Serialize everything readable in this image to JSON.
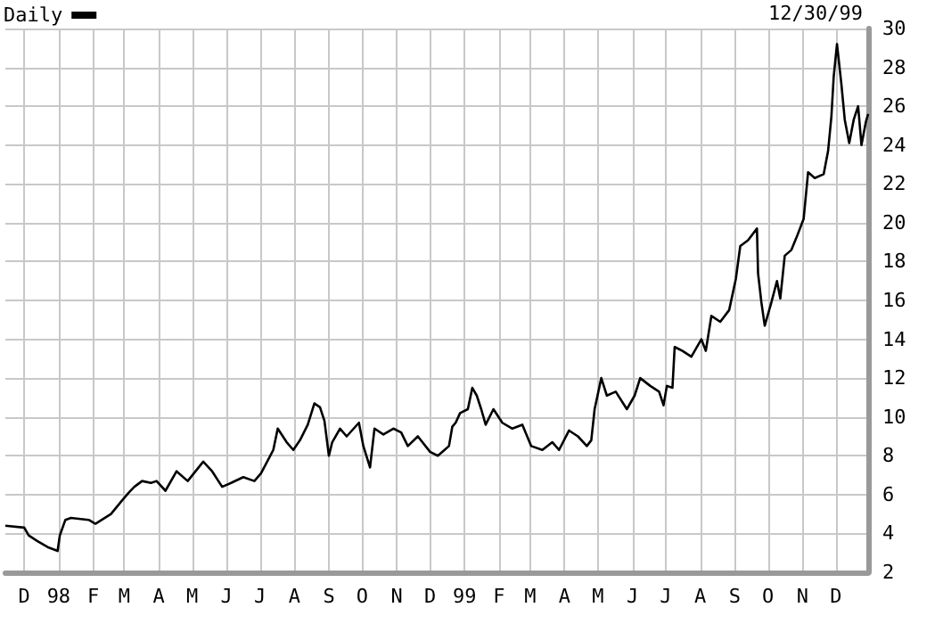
{
  "chart_data": {
    "type": "line",
    "annotations": [
      "12/30/99"
    ],
    "x": [
      "1997-11-14",
      "1997-12-01",
      "1997-12-05",
      "1997-12-13",
      "1997-12-22",
      "1997-12-31",
      "1998-01-02",
      "1998-01-07",
      "1998-01-12",
      "1998-01-28",
      "1998-02-03",
      "1998-02-17",
      "1998-02-27",
      "1998-03-05",
      "1998-03-10",
      "1998-03-17",
      "1998-03-25",
      "1998-03-30",
      "1998-04-07",
      "1998-04-17",
      "1998-04-27",
      "1998-05-11",
      "1998-05-19",
      "1998-05-28",
      "1998-06-05",
      "1998-06-16",
      "1998-06-26",
      "1998-07-02",
      "1998-07-13",
      "1998-07-17",
      "1998-07-25",
      "1998-07-31",
      "1998-08-06",
      "1998-08-13",
      "1998-08-19",
      "1998-08-24",
      "1998-08-28",
      "1998-09-01",
      "1998-09-04",
      "1998-09-11",
      "1998-09-17",
      "1998-09-28",
      "1998-10-02",
      "1998-10-08",
      "1998-10-12",
      "1998-10-20",
      "1998-10-29",
      "1998-11-05",
      "1998-11-11",
      "1998-11-20",
      "1998-12-01",
      "1998-12-08",
      "1998-12-14",
      "1998-12-18",
      "1998-12-21",
      "1998-12-24",
      "1998-12-28",
      "1999-01-04",
      "1999-01-08",
      "1999-01-12",
      "1999-01-16",
      "1999-01-20",
      "1999-01-27",
      "1999-02-04",
      "1999-02-13",
      "1999-02-22",
      "1999-03-02",
      "1999-03-12",
      "1999-03-21",
      "1999-03-27",
      "1999-04-05",
      "1999-04-13",
      "1999-04-21",
      "1999-04-25",
      "1999-04-28",
      "1999-05-04",
      "1999-05-09",
      "1999-05-17",
      "1999-05-27",
      "1999-06-03",
      "1999-06-08",
      "1999-06-17",
      "1999-06-25",
      "1999-06-29",
      "1999-07-02",
      "1999-07-07",
      "1999-07-09",
      "1999-07-16",
      "1999-07-24",
      "1999-08-02",
      "1999-08-06",
      "1999-08-11",
      "1999-08-19",
      "1999-08-27",
      "1999-09-02",
      "1999-09-06",
      "1999-09-13",
      "1999-09-21",
      "1999-09-22",
      "1999-09-25",
      "1999-09-28",
      "1999-10-04",
      "1999-10-09",
      "1999-10-12",
      "1999-10-16",
      "1999-10-22",
      "1999-10-27",
      "1999-11-02",
      "1999-11-05",
      "1999-11-06",
      "1999-11-12",
      "1999-11-20",
      "1999-11-24",
      "1999-11-27",
      "1999-11-29",
      "1999-12-02",
      "1999-12-06",
      "1999-12-09",
      "1999-12-13",
      "1999-12-17",
      "1999-12-21",
      "1999-12-24",
      "1999-12-28",
      "1999-12-30"
    ],
    "series": [
      {
        "name": "Daily",
        "color": "#000000",
        "values": [
          4.4,
          4.3,
          3.9,
          3.6,
          3.3,
          3.1,
          3.9,
          4.7,
          4.8,
          4.7,
          4.5,
          5.0,
          5.7,
          6.1,
          6.4,
          6.7,
          6.6,
          6.7,
          6.2,
          7.2,
          6.7,
          7.7,
          7.2,
          6.4,
          6.6,
          6.9,
          6.7,
          7.1,
          8.3,
          9.4,
          8.7,
          8.3,
          8.8,
          9.6,
          10.7,
          10.5,
          9.8,
          8.0,
          8.7,
          9.4,
          9.0,
          9.7,
          8.5,
          7.4,
          9.4,
          9.1,
          9.4,
          9.2,
          8.5,
          9.0,
          8.2,
          8.0,
          8.3,
          8.5,
          9.5,
          9.7,
          10.2,
          10.4,
          11.5,
          11.1,
          10.4,
          9.6,
          10.4,
          9.7,
          9.4,
          9.6,
          8.5,
          8.3,
          8.7,
          8.3,
          9.3,
          9.0,
          8.5,
          8.8,
          10.4,
          12.0,
          11.1,
          11.3,
          10.4,
          11.1,
          12.0,
          11.6,
          11.3,
          10.6,
          11.6,
          11.5,
          13.6,
          13.4,
          13.1,
          14.0,
          13.4,
          15.2,
          14.9,
          15.5,
          17.1,
          18.8,
          19.1,
          19.7,
          17.4,
          15.9,
          14.7,
          15.9,
          17.0,
          16.1,
          18.3,
          18.6,
          19.3,
          20.2,
          22.0,
          22.6,
          22.3,
          22.5,
          23.7,
          25.5,
          27.5,
          29.2,
          27.1,
          25.3,
          24.1,
          25.3,
          26.0,
          24.0,
          25.2,
          25.6
        ]
      }
    ],
    "xlim": [
      "1997-11-14",
      "1999-12-30"
    ],
    "xticks": [
      {
        "value": "1997-12-01",
        "label": "D"
      },
      {
        "value": "1998-01-01",
        "label": "98"
      },
      {
        "value": "1998-02-01",
        "label": "F"
      },
      {
        "value": "1998-03-01",
        "label": "M"
      },
      {
        "value": "1998-04-01",
        "label": "A"
      },
      {
        "value": "1998-05-01",
        "label": "M"
      },
      {
        "value": "1998-06-01",
        "label": "J"
      },
      {
        "value": "1998-07-01",
        "label": "J"
      },
      {
        "value": "1998-08-01",
        "label": "A"
      },
      {
        "value": "1998-09-01",
        "label": "S"
      },
      {
        "value": "1998-10-01",
        "label": "O"
      },
      {
        "value": "1998-11-01",
        "label": "N"
      },
      {
        "value": "1998-12-01",
        "label": "D"
      },
      {
        "value": "1999-01-01",
        "label": "99"
      },
      {
        "value": "1999-02-01",
        "label": "F"
      },
      {
        "value": "1999-03-01",
        "label": "M"
      },
      {
        "value": "1999-04-01",
        "label": "A"
      },
      {
        "value": "1999-05-01",
        "label": "M"
      },
      {
        "value": "1999-06-01",
        "label": "J"
      },
      {
        "value": "1999-07-01",
        "label": "J"
      },
      {
        "value": "1999-08-01",
        "label": "A"
      },
      {
        "value": "1999-09-01",
        "label": "S"
      },
      {
        "value": "1999-10-01",
        "label": "O"
      },
      {
        "value": "1999-11-01",
        "label": "N"
      },
      {
        "value": "1999-12-01",
        "label": "D"
      }
    ],
    "ylim": [
      2,
      30
    ],
    "yticks": [
      2,
      4,
      6,
      8,
      10,
      12,
      14,
      16,
      18,
      20,
      22,
      24,
      26,
      28,
      30
    ],
    "grid": true,
    "legend": "top left",
    "marker": "none",
    "line_style": "solid"
  }
}
